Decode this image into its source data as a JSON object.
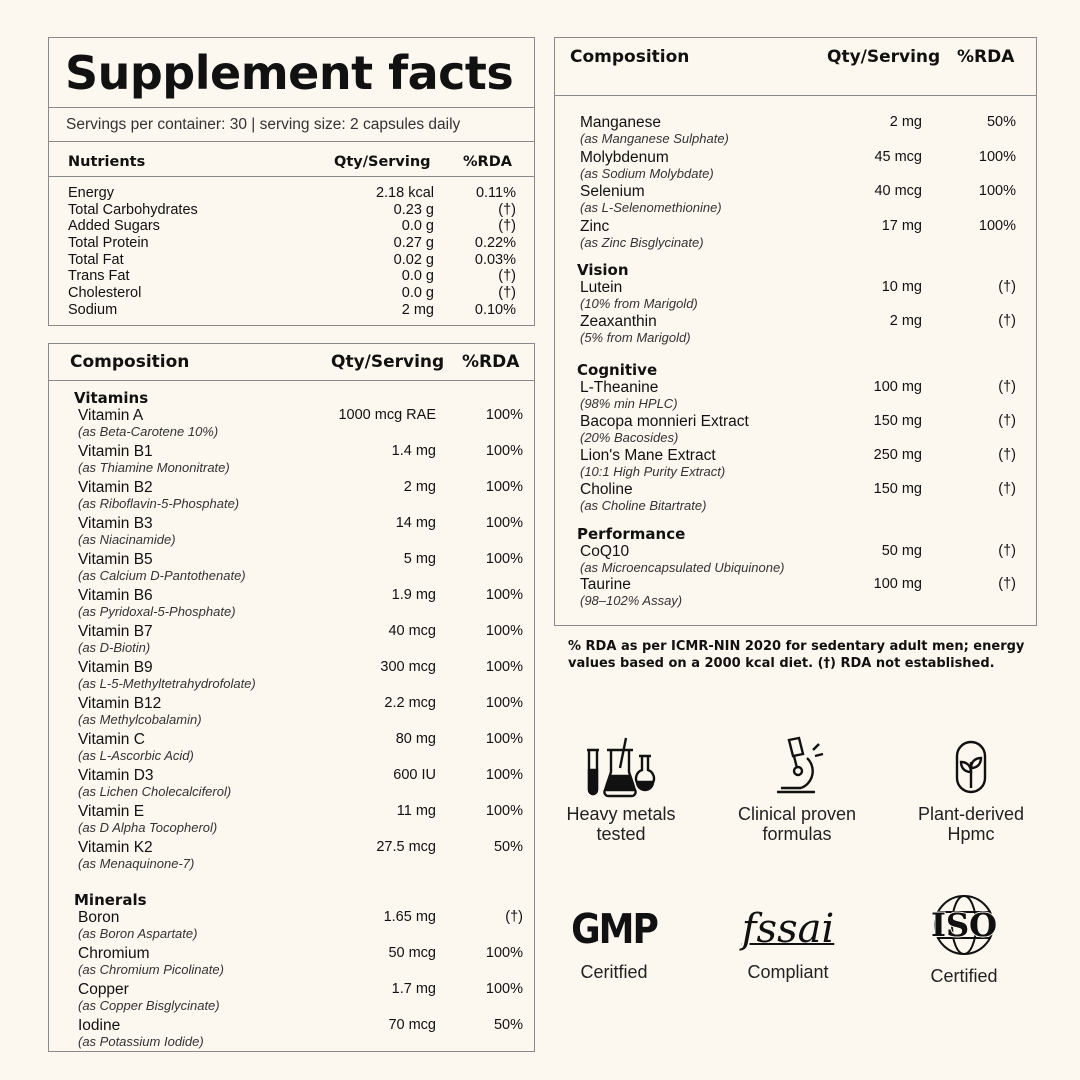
{
  "facts": {
    "title": "Supplement facts",
    "servings": "Servings per container: 30 | serving size: 2 capsules daily",
    "headers": {
      "name": "Nutrients",
      "qty": "Qty/Serving",
      "rda": "%RDA"
    },
    "rows": [
      {
        "name": "Energy",
        "qty": "2.18 kcal",
        "rda": "0.11%"
      },
      {
        "name": "Total Carbohydrates",
        "qty": "0.23 g",
        "rda": "(†)"
      },
      {
        "name": "Added Sugars",
        "qty": "0.0 g",
        "rda": "(†)"
      },
      {
        "name": "Total Protein",
        "qty": "0.27 g",
        "rda": "0.22%"
      },
      {
        "name": "Total Fat",
        "qty": "0.02 g",
        "rda": "0.03%"
      },
      {
        "name": "Trans Fat",
        "qty": "0.0 g",
        "rda": "(†)"
      },
      {
        "name": "Cholesterol",
        "qty": "0.0 g",
        "rda": "(†)"
      },
      {
        "name": "Sodium",
        "qty": "2 mg",
        "rda": "0.10%"
      }
    ]
  },
  "comp_left": {
    "headers": {
      "name": "Composition",
      "qty": "Qty/Serving",
      "rda": "%RDA"
    },
    "vitamins_title": "Vitamins",
    "vitamins": [
      {
        "name": "Vitamin A",
        "sub": "(as Beta-Carotene 10%)",
        "qty": "1000 mcg RAE",
        "rda": "100%"
      },
      {
        "name": "Vitamin B1",
        "sub": "(as Thiamine Mononitrate)",
        "qty": "1.4 mg",
        "rda": "100%"
      },
      {
        "name": "Vitamin B2",
        "sub": "(as Riboflavin-5-Phosphate)",
        "qty": "2 mg",
        "rda": "100%"
      },
      {
        "name": "Vitamin B3",
        "sub": "(as Niacinamide)",
        "qty": "14 mg",
        "rda": "100%"
      },
      {
        "name": "Vitamin B5",
        "sub": "(as Calcium D-Pantothenate)",
        "qty": "5 mg",
        "rda": "100%"
      },
      {
        "name": "Vitamin B6",
        "sub": "(as Pyridoxal-5-Phosphate)",
        "qty": "1.9 mg",
        "rda": "100%"
      },
      {
        "name": "Vitamin B7",
        "sub": "(as D-Biotin)",
        "qty": "40 mcg",
        "rda": "100%"
      },
      {
        "name": "Vitamin B9",
        "sub": "(as L-5-Methyltetrahydrofolate)",
        "qty": "300 mcg",
        "rda": "100%"
      },
      {
        "name": "Vitamin B12",
        "sub": "(as Methylcobalamin)",
        "qty": "2.2 mcg",
        "rda": "100%"
      },
      {
        "name": "Vitamin C",
        "sub": "(as L-Ascorbic Acid)",
        "qty": "80 mg",
        "rda": "100%"
      },
      {
        "name": "Vitamin D3",
        "sub": "(as Lichen Cholecalciferol)",
        "qty": "600 IU",
        "rda": "100%"
      },
      {
        "name": "Vitamin E",
        "sub": "(as D Alpha Tocopherol)",
        "qty": "11 mg",
        "rda": "100%"
      },
      {
        "name": "Vitamin K2",
        "sub": "(as Menaquinone-7)",
        "qty": "27.5 mcg",
        "rda": "50%"
      }
    ],
    "minerals_title": "Minerals",
    "minerals": [
      {
        "name": "Boron",
        "sub": "(as Boron Aspartate)",
        "qty": "1.65 mg",
        "rda": "(†)"
      },
      {
        "name": "Chromium",
        "sub": "(as Chromium Picolinate)",
        "qty": "50 mcg",
        "rda": "100%"
      },
      {
        "name": "Copper",
        "sub": "(as Copper Bisglycinate)",
        "qty": "1.7 mg",
        "rda": "100%"
      },
      {
        "name": "Iodine",
        "sub": "(as Potassium Iodide)",
        "qty": "70 mcg",
        "rda": "50%"
      }
    ]
  },
  "comp_right": {
    "headers": {
      "name": "Composition",
      "qty": "Qty/Serving",
      "rda": "%RDA"
    },
    "minerals": [
      {
        "name": "Manganese",
        "sub": "(as Manganese Sulphate)",
        "qty": "2 mg",
        "rda": "50%"
      },
      {
        "name": "Molybdenum",
        "sub": "(as Sodium Molybdate)",
        "qty": "45 mcg",
        "rda": "100%"
      },
      {
        "name": "Selenium",
        "sub": "(as L-Selenomethionine)",
        "qty": "40 mcg",
        "rda": "100%"
      },
      {
        "name": "Zinc",
        "sub": "(as Zinc Bisglycinate)",
        "qty": "17 mg",
        "rda": "100%"
      }
    ],
    "vision_title": "Vision",
    "vision": [
      {
        "name": "Lutein",
        "sub": "(10% from Marigold)",
        "qty": "10 mg",
        "rda": "(†)"
      },
      {
        "name": "Zeaxanthin",
        "sub": "(5% from Marigold)",
        "qty": "2 mg",
        "rda": "(†)"
      }
    ],
    "cognitive_title": "Cognitive",
    "cognitive": [
      {
        "name": "L-Theanine",
        "sub": "(98% min HPLC)",
        "qty": "100 mg",
        "rda": "(†)"
      },
      {
        "name": "Bacopa monnieri Extract",
        "sub": "(20% Bacosides)",
        "qty": "150 mg",
        "rda": "(†)"
      },
      {
        "name": "Lion's Mane Extract",
        "sub": "(10:1 High Purity Extract)",
        "qty": "250 mg",
        "rda": "(†)"
      },
      {
        "name": "Choline",
        "sub": "(as Choline Bitartrate)",
        "qty": "150 mg",
        "rda": "(†)"
      }
    ],
    "performance_title": "Performance",
    "performance": [
      {
        "name": "CoQ10",
        "sub": "(as Microencapsulated Ubiquinone)",
        "qty": "50 mg",
        "rda": "(†)"
      },
      {
        "name": "Taurine",
        "sub": "(98–102% Assay)",
        "qty": "100 mg",
        "rda": "(†)"
      }
    ]
  },
  "note": "% RDA as per ICMR-NIN 2020 for sedentary adult men; energy values based on a 2000 kcal diet. (†) RDA not established.",
  "badges": [
    {
      "icon": "lab-flasks-icon",
      "label1": "Heavy metals",
      "label2": "tested"
    },
    {
      "icon": "microscope-icon",
      "label1": "Clinical proven",
      "label2": "formulas"
    },
    {
      "icon": "plant-capsule-icon",
      "label1": "Plant-derived",
      "label2": "Hpmc"
    },
    {
      "icon": "gmp-logo",
      "logo_text": "GMP",
      "label1": "Ceritfied"
    },
    {
      "icon": "fssai-logo",
      "logo_text": "fssai",
      "label1": "Compliant"
    },
    {
      "icon": "iso-logo",
      "logo_text": "ISO",
      "label1": "Certified"
    }
  ]
}
